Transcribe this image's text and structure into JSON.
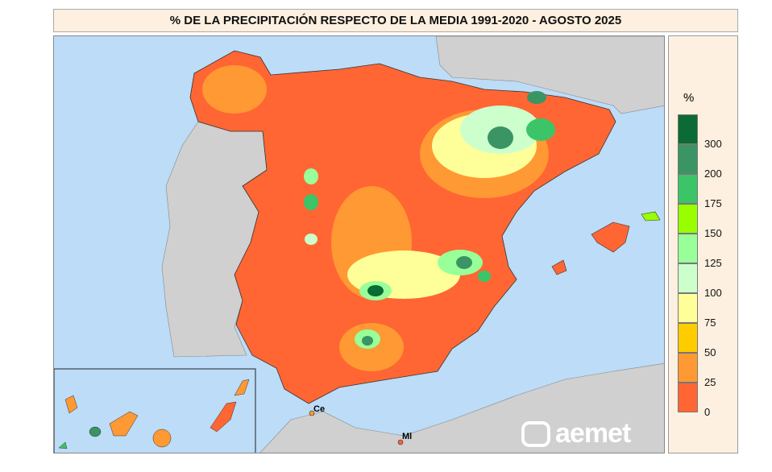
{
  "title": "% DE LA PRECIPITACIÓN RESPECTO DE LA MEDIA 1991-2020 - AGOSTO 2025",
  "legend": {
    "unit": "%",
    "labels": [
      "300",
      "200",
      "175",
      "150",
      "125",
      "100",
      "75",
      "50",
      "25",
      "0"
    ],
    "colors": [
      "#0b6b35",
      "#3a9463",
      "#3cc468",
      "#99ff00",
      "#99ff99",
      "#ccffcc",
      "#ffff99",
      "#ffcc00",
      "#ff9933",
      "#ff6633"
    ]
  },
  "map": {
    "places": [
      "Ce",
      "Ml"
    ],
    "logo": "aemet",
    "sea_color": "#bcdcf7",
    "land_color": "#d0d0d0"
  }
}
